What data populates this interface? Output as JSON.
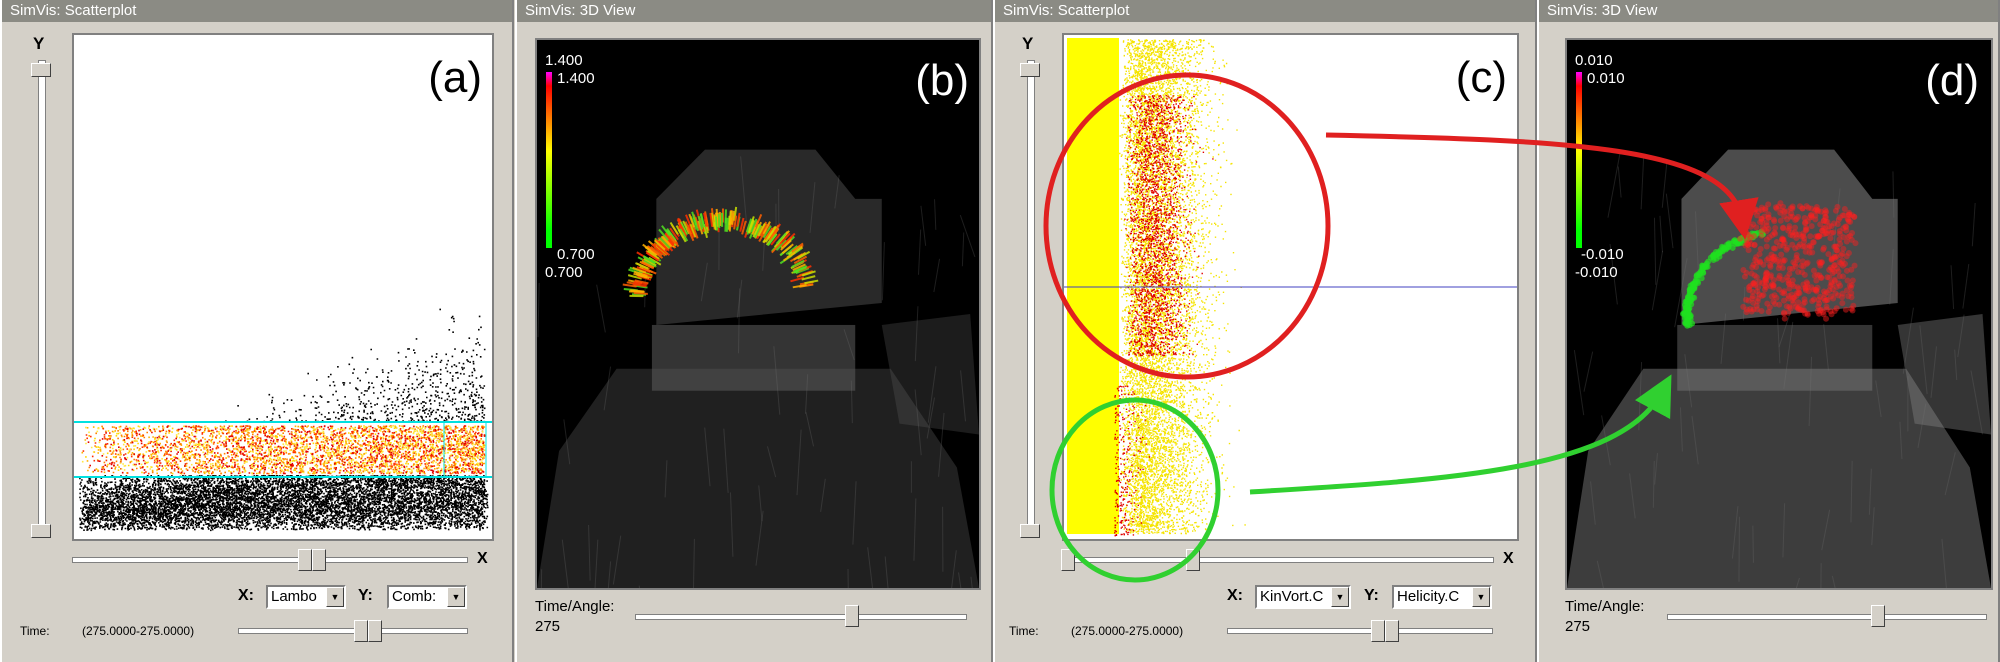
{
  "panels": [
    {
      "title": "SimVis: Scatterplot",
      "label": "(a)"
    },
    {
      "title": "SimVis: 3D View",
      "label": "(b)"
    },
    {
      "title": "SimVis: Scatterplot",
      "label": "(c)"
    },
    {
      "title": "SimVis: 3D View",
      "label": "(d)"
    }
  ],
  "scatter_a": {
    "y_axis": "Y",
    "x_axis": "X",
    "x_label": "X:",
    "x_value": "Lambo",
    "y_label": "Y:",
    "y_value": "Comb:",
    "time_label": "Time:",
    "time_range": "(275.0000-275.0000)"
  },
  "view_b": {
    "cbar_max_outer": "1.400",
    "cbar_max_inner": "1.400",
    "cbar_min_inner": "0.700",
    "cbar_min_outer": "0.700",
    "time_label": "Time/Angle:",
    "time_value": "275",
    "time_slider_fraction": 0.69
  },
  "scatter_c": {
    "y_axis": "Y",
    "x_axis": "X",
    "x_label": "X:",
    "x_value": "KinVort.C",
    "y_label": "Y:",
    "y_value": "Helicity.C",
    "time_label": "Time:",
    "time_range": "(275.0000-275.0000)"
  },
  "view_d": {
    "cbar_max_outer": "0.010",
    "cbar_max_inner": "0.010",
    "cbar_min_inner": "-0.010",
    "cbar_min_outer": "-0.010",
    "time_label": "Time/Angle:",
    "time_value": "275",
    "time_slider_fraction": 0.69
  },
  "colors": {
    "window_bg": "#d4d0c8",
    "titlebar": "#8b8b84",
    "highlight_red": "#e02020",
    "highlight_green": "#30d030",
    "brush_cyan": "#00e0e0"
  }
}
